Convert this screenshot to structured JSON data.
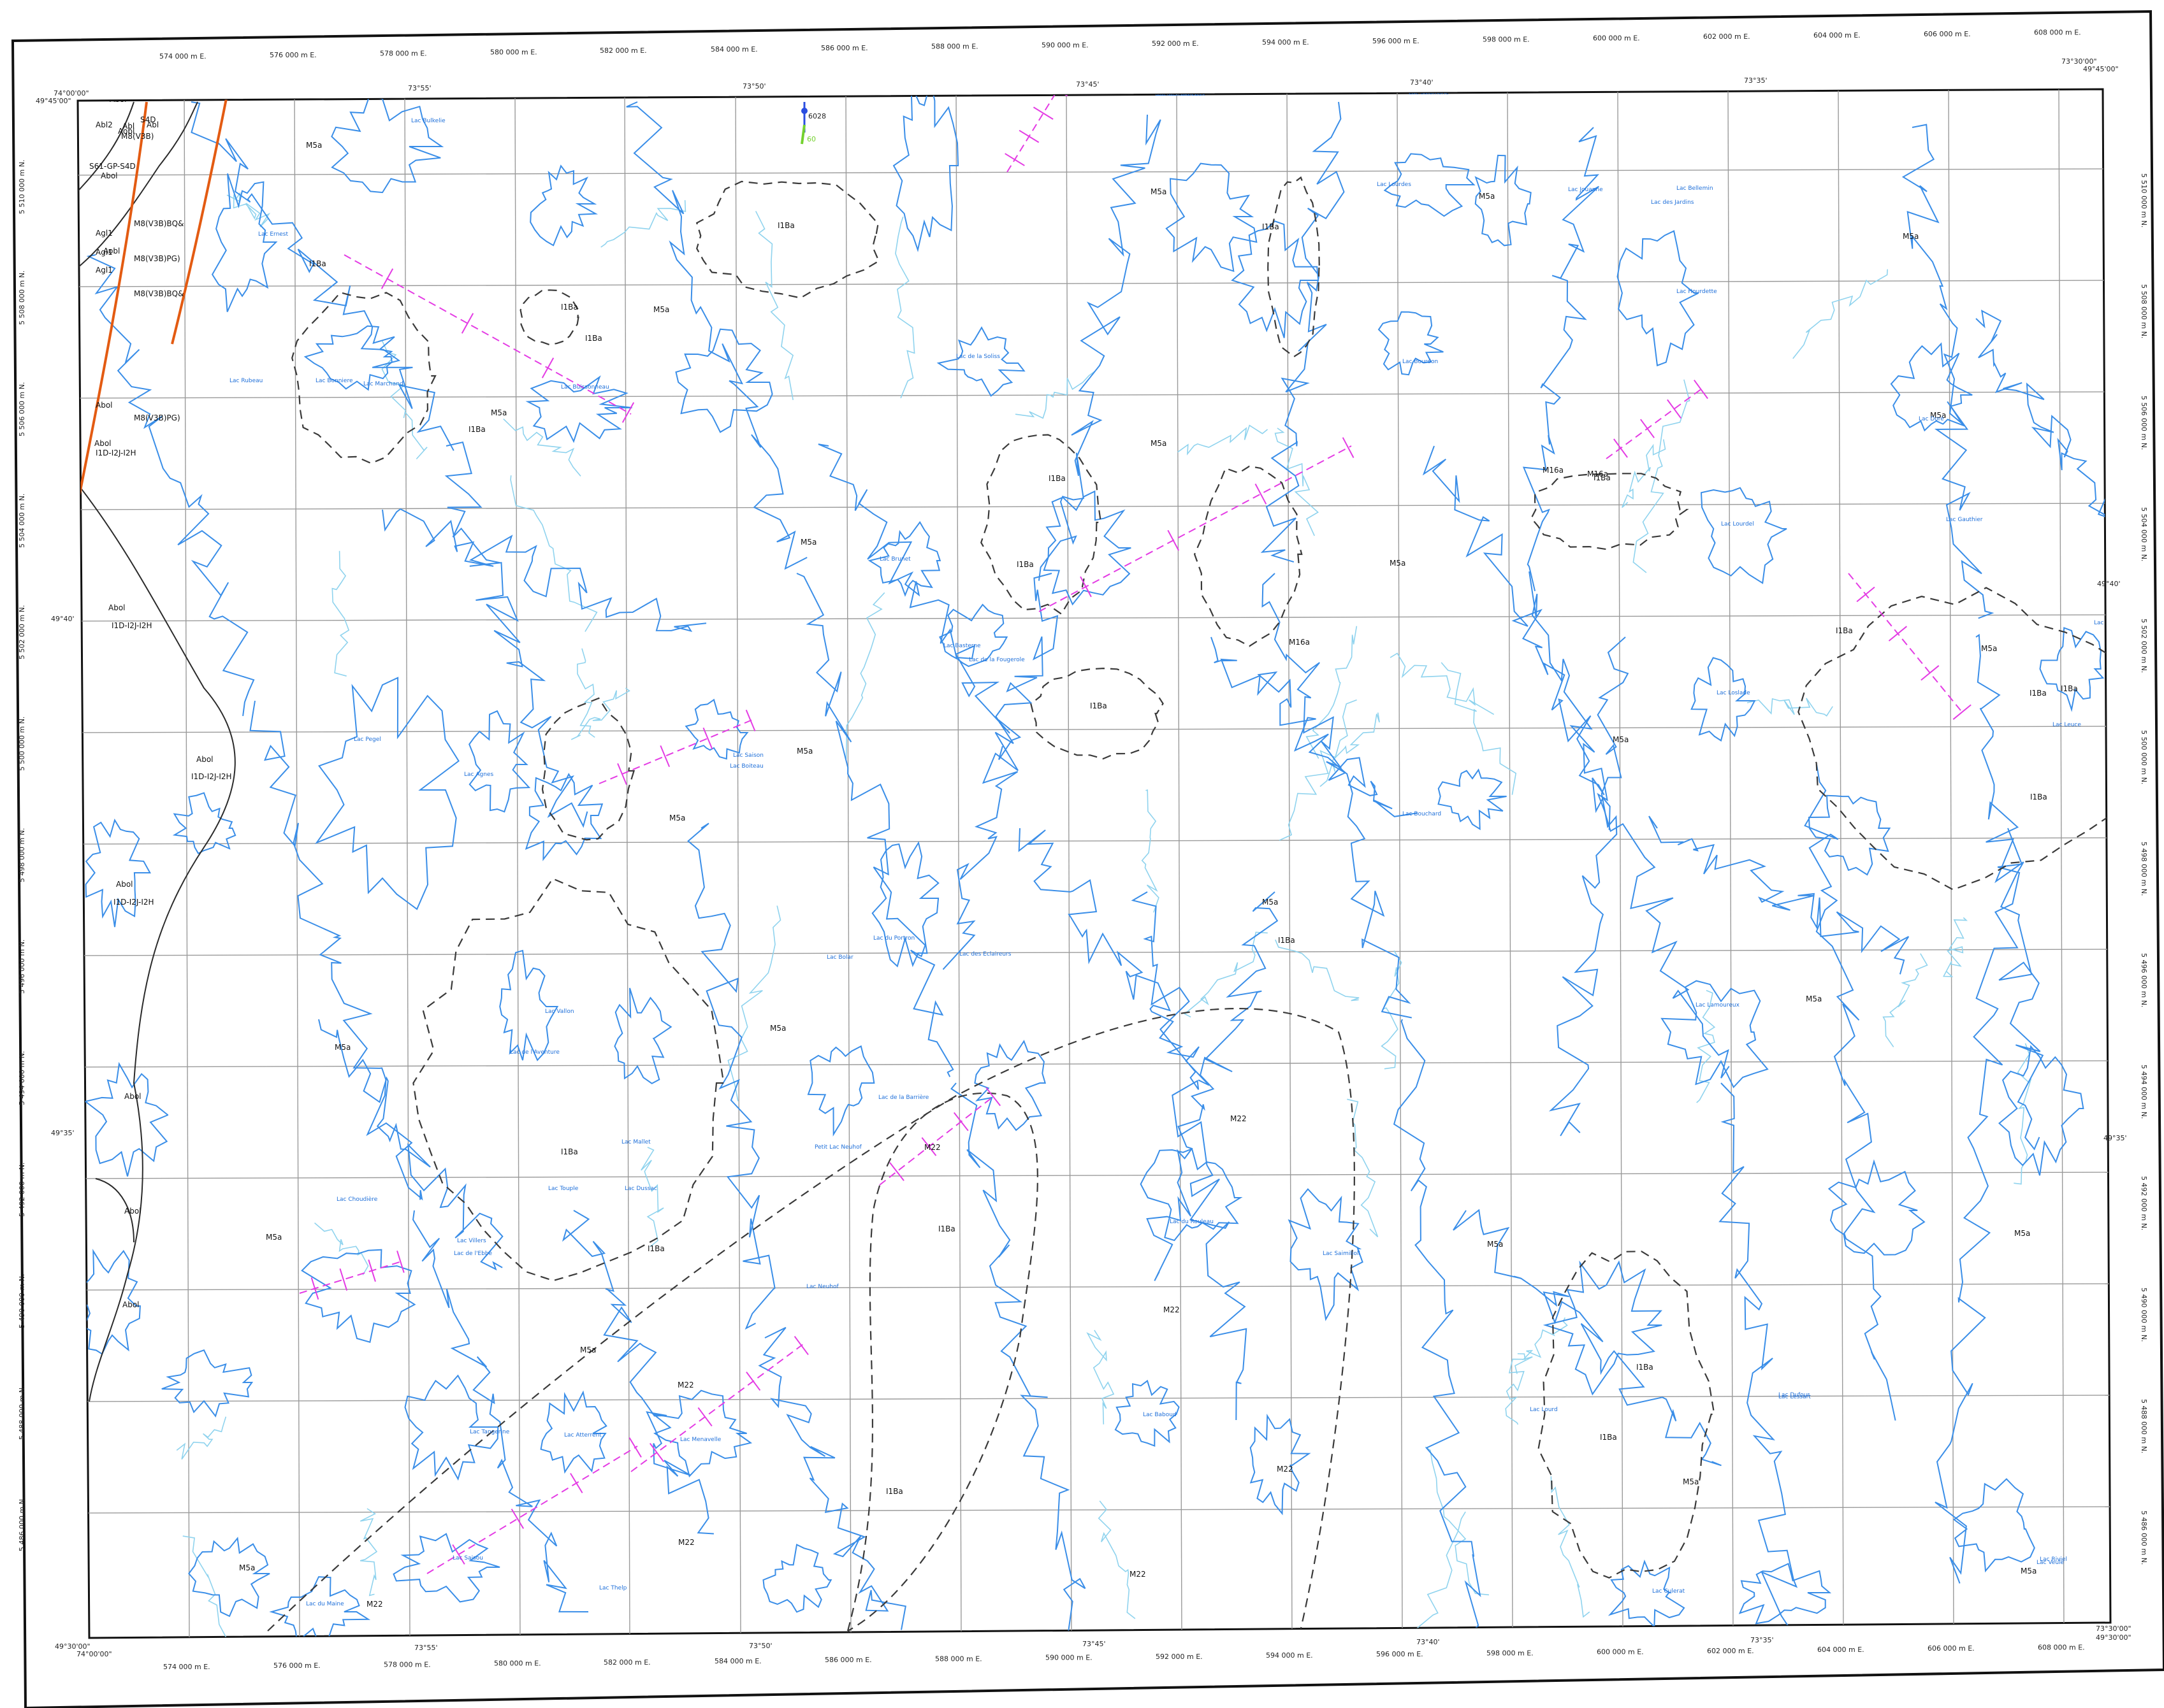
{
  "colors": {
    "grid": "#9a9a9a",
    "hydro": "#3a8ee8",
    "hydro_light": "#8fd3ee",
    "fault": "#e35b12",
    "contact": "#2a2a2a",
    "dashed_contact": "#3a3a3a",
    "magnetic": "#e43ce4",
    "lake_label": "#1e6fd9",
    "neatline": "#111111"
  },
  "corner_labels": {
    "top_left_lon": "74°00'00\"",
    "top_left_lat": "49°45'00\"",
    "top_right_lon": "73°30'00\"",
    "top_right_lat": "49°45'00\"",
    "bottom_left_lon": "74°00'00\"",
    "bottom_left_lat": "49°30'00\"",
    "bottom_right_lon": "73°30'00\"",
    "bottom_right_lat": "49°30'00\""
  },
  "longitude_ticks": [
    "73°55'",
    "73°50'",
    "73°45'",
    "73°40'",
    "73°35'"
  ],
  "latitude_ticks": [
    "49°40'",
    "49°35'"
  ],
  "easting_labels": [
    "574 000 m E.",
    "576 000 m E.",
    "578 000 m E.",
    "580 000 m E.",
    "582 000 m E.",
    "584 000 m E.",
    "586 000 m E.",
    "588 000 m E.",
    "590 000 m E.",
    "592 000 m E.",
    "594 000 m E.",
    "596 000 m E.",
    "598 000 m E.",
    "600 000 m E.",
    "602 000 m E.",
    "604 000 m E.",
    "606 000 m E.",
    "608 000 m E."
  ],
  "northing_labels": [
    "5 510 000 m N.",
    "5 508 000 m N.",
    "5 506 000 m N.",
    "5 504 000 m N.",
    "5 502 000 m N.",
    "5 500 000 m N.",
    "5 498 000 m N.",
    "5 496 000 m N.",
    "5 494 000 m N.",
    "5 492 000 m N.",
    "5 490 000 m N.",
    "5 488 000 m N.",
    "5 486 000 m N."
  ],
  "geology": [
    {
      "code": "M5a"
    },
    {
      "code": "M5a"
    },
    {
      "code": "M5a"
    },
    {
      "code": "M5a"
    },
    {
      "code": "M5a"
    },
    {
      "code": "M5a"
    },
    {
      "code": "M5a"
    },
    {
      "code": "M5a"
    },
    {
      "code": "M5a"
    },
    {
      "code": "M5a"
    },
    {
      "code": "M5a"
    },
    {
      "code": "M5a"
    },
    {
      "code": "M5a"
    },
    {
      "code": "M5a"
    },
    {
      "code": "M5a"
    },
    {
      "code": "M5a"
    },
    {
      "code": "M5a"
    },
    {
      "code": "M5a"
    },
    {
      "code": "M5a"
    },
    {
      "code": "M5a"
    },
    {
      "code": "M5a"
    },
    {
      "code": "M5a"
    },
    {
      "code": "M5a"
    },
    {
      "code": "M5a"
    },
    {
      "code": "M5a"
    },
    {
      "code": "I1Ba"
    },
    {
      "code": "I1Ba"
    },
    {
      "code": "I1Ba"
    },
    {
      "code": "I1Ba"
    },
    {
      "code": "I1Ba"
    },
    {
      "code": "I1Ba"
    },
    {
      "code": "I1Ba"
    },
    {
      "code": "I1Ba"
    },
    {
      "code": "I1Ba"
    },
    {
      "code": "I1Ba"
    },
    {
      "code": "I1Ba"
    },
    {
      "code": "I1Ba"
    },
    {
      "code": "I1Ba"
    },
    {
      "code": "I1Ba"
    },
    {
      "code": "I1Ba"
    },
    {
      "code": "I1Ba"
    },
    {
      "code": "I1Ba"
    },
    {
      "code": "I1Ba"
    },
    {
      "code": "I1Ba"
    },
    {
      "code": "I1Ba"
    },
    {
      "code": "I1Ba"
    },
    {
      "code": "M22"
    },
    {
      "code": "M22"
    },
    {
      "code": "M22"
    },
    {
      "code": "M22"
    },
    {
      "code": "M22"
    },
    {
      "code": "M22"
    },
    {
      "code": "M22"
    },
    {
      "code": "M22"
    },
    {
      "code": "M16a"
    },
    {
      "code": "M16a"
    },
    {
      "code": "M16a"
    },
    {
      "code": "Abol"
    },
    {
      "code": "I1D-I2J-I2H"
    },
    {
      "code": "Abol"
    },
    {
      "code": "I1D-I2J-I2H"
    },
    {
      "code": "Abol"
    },
    {
      "code": "I1D-I2J-I2H"
    },
    {
      "code": "Abol"
    },
    {
      "code": "Abol"
    },
    {
      "code": "Abol"
    },
    {
      "code": "Abol"
    },
    {
      "code": "Abol"
    },
    {
      "code": "I1D-I2J-I2H"
    },
    {
      "code": "Agl1"
    },
    {
      "code": "Agl1"
    },
    {
      "code": "Agl1"
    },
    {
      "code": "Abol"
    },
    {
      "code": "Aobl"
    },
    {
      "code": "M8(V3B)BQ&"
    },
    {
      "code": "M8(V3B)BQ&"
    },
    {
      "code": "M8(V3B)PG)"
    },
    {
      "code": "M8(V3B)PG)"
    },
    {
      "code": "Abl2"
    },
    {
      "code": "Abl"
    },
    {
      "code": "Abl"
    },
    {
      "code": "S4D"
    },
    {
      "code": "M8(V3B)"
    },
    {
      "code": "S61-GP-S4D"
    },
    {
      "code": "Abol"
    },
    {
      "code": "Aobl"
    }
  ],
  "lakes": [
    "Lac Bulkelie",
    "Lac des Orbeaux",
    "Lac Salomone",
    "Lac Ernest",
    "Lac Rubeau",
    "Lac Bonniere",
    "Lac Buissonneau",
    "Lac Marchand",
    "Lac de la Soliss",
    "Lac des Sources",
    "Lac Brunet",
    "Lac Basterne",
    "Lac Bourdon",
    "Lac Hourdette",
    "Lac Lourdel",
    "Lac de la Fougerole",
    "Lac Pegel",
    "Lac Agnes",
    "Lac Saison",
    "Lac Boiteau",
    "Lac du Portron",
    "Lac Bolar",
    "Lac des Eclaireurs",
    "Lac de l'Aventure",
    "Lac Vallon",
    "Lac de la Barrière",
    "Petit Lac Neuhof",
    "Lac Mallet",
    "Lac Touple",
    "Lac Dussac",
    "Lac Choudière",
    "Lac Villers",
    "Lac de l'Ebbe",
    "Lac Neuhof",
    "Lac du Rouleau",
    "Lac Saimilioll",
    "Lac Lamoureux",
    "Lac Baboud",
    "Lac Lourd",
    "Lac Lessart",
    "Lac Tangerine",
    "Lac Atterrent",
    "Lac Menavelle",
    "Lac Saisou",
    "Lac du Maine",
    "Lac Thelp",
    "Lac Culerat",
    "Lac Dufour",
    "Lac Riviel",
    "Lac Doré",
    "Lac Bellemin",
    "Lac Gauthier",
    "Lac Loslade",
    "Lac des Jardins",
    "Lac Lourdes",
    "Lac Jouanne",
    "Lac Bouchard",
    "Lac Larochelle",
    "Lac Leuce",
    "Lac Veule"
  ],
  "markers": {
    "blue_label": "6028",
    "green_label": "60"
  }
}
